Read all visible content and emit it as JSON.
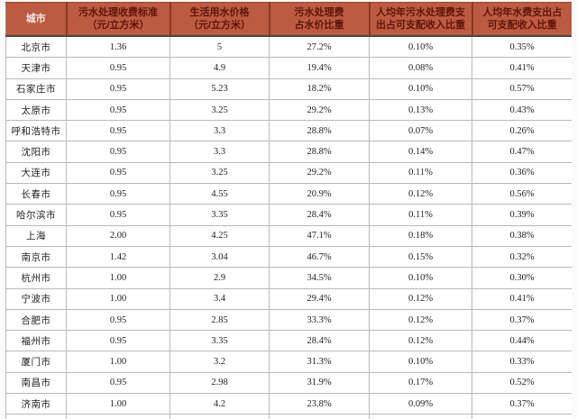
{
  "table": {
    "title_semantic": "城市污水处理费与水价比较表",
    "columns": [
      {
        "line1": "城市",
        "line2": ""
      },
      {
        "line1": "污水处理收费标准",
        "line2": "（元/立方米）"
      },
      {
        "line1": "生活用水价格",
        "line2": "（元/立方米）"
      },
      {
        "line1": "污水处理费",
        "line2": "占水价比重"
      },
      {
        "line1": "人均年污水处理费支",
        "line2": "出占可支配收入比重"
      },
      {
        "line1": "人均年水费支出占",
        "line2": "可支配收入比重"
      }
    ],
    "rows": [
      {
        "city": "北京市",
        "fee": "1.36",
        "price": "5",
        "pct_of_water_price": "27.2%",
        "sewage_pct_income": "0.10%",
        "water_pct_income": "0.35%"
      },
      {
        "city": "天津市",
        "fee": "0.95",
        "price": "4.9",
        "pct_of_water_price": "19.4%",
        "sewage_pct_income": "0.08%",
        "water_pct_income": "0.41%"
      },
      {
        "city": "石家庄市",
        "fee": "0.95",
        "price": "5.23",
        "pct_of_water_price": "18.2%",
        "sewage_pct_income": "0.10%",
        "water_pct_income": "0.57%"
      },
      {
        "city": "太原市",
        "fee": "0.95",
        "price": "3.25",
        "pct_of_water_price": "29.2%",
        "sewage_pct_income": "0.13%",
        "water_pct_income": "0.43%"
      },
      {
        "city": "呼和浩特市",
        "fee": "0.95",
        "price": "3.3",
        "pct_of_water_price": "28.8%",
        "sewage_pct_income": "0.07%",
        "water_pct_income": "0.26%"
      },
      {
        "city": "沈阳市",
        "fee": "0.95",
        "price": "3.3",
        "pct_of_water_price": "28.8%",
        "sewage_pct_income": "0.14%",
        "water_pct_income": "0.47%"
      },
      {
        "city": "大连市",
        "fee": "0.95",
        "price": "3.25",
        "pct_of_water_price": "29.2%",
        "sewage_pct_income": "0.11%",
        "water_pct_income": "0.36%"
      },
      {
        "city": "长春市",
        "fee": "0.95",
        "price": "4.55",
        "pct_of_water_price": "20.9%",
        "sewage_pct_income": "0.12%",
        "water_pct_income": "0.56%"
      },
      {
        "city": "哈尔滨市",
        "fee": "0.95",
        "price": "3.35",
        "pct_of_water_price": "28.4%",
        "sewage_pct_income": "0.11%",
        "water_pct_income": "0.39%"
      },
      {
        "city": "上海",
        "fee": "2.00",
        "price": "4.25",
        "pct_of_water_price": "47.1%",
        "sewage_pct_income": "0.18%",
        "water_pct_income": "0.38%"
      },
      {
        "city": "南京市",
        "fee": "1.42",
        "price": "3.04",
        "pct_of_water_price": "46.7%",
        "sewage_pct_income": "0.15%",
        "water_pct_income": "0.32%"
      },
      {
        "city": "杭州市",
        "fee": "1.00",
        "price": "2.9",
        "pct_of_water_price": "34.5%",
        "sewage_pct_income": "0.10%",
        "water_pct_income": "0.30%"
      },
      {
        "city": "宁波市",
        "fee": "1.00",
        "price": "3.4",
        "pct_of_water_price": "29.4%",
        "sewage_pct_income": "0.12%",
        "water_pct_income": "0.41%"
      },
      {
        "city": "合肥市",
        "fee": "0.95",
        "price": "2.85",
        "pct_of_water_price": "33.3%",
        "sewage_pct_income": "0.12%",
        "water_pct_income": "0.37%"
      },
      {
        "city": "福州市",
        "fee": "0.95",
        "price": "3.35",
        "pct_of_water_price": "28.4%",
        "sewage_pct_income": "0.12%",
        "water_pct_income": "0.44%"
      },
      {
        "city": "厦门市",
        "fee": "1.00",
        "price": "3.2",
        "pct_of_water_price": "31.3%",
        "sewage_pct_income": "0.10%",
        "water_pct_income": "0.33%"
      },
      {
        "city": "南昌市",
        "fee": "0.95",
        "price": "2.98",
        "pct_of_water_price": "31.9%",
        "sewage_pct_income": "0.17%",
        "water_pct_income": "0.52%"
      },
      {
        "city": "济南市",
        "fee": "1.00",
        "price": "4.2",
        "pct_of_water_price": "23.8%",
        "sewage_pct_income": "0.09%",
        "water_pct_income": "0.37%"
      }
    ]
  },
  "colors": {
    "header_bg": "#bc5a42",
    "header_text": "#5e150a",
    "header_first_cell_text": "#f5e9e2",
    "header_separator": "#8d3a25",
    "grid_line": "#b5bac0",
    "body_text": "#1e1e1e",
    "page_bg": "#fcfbf9"
  }
}
